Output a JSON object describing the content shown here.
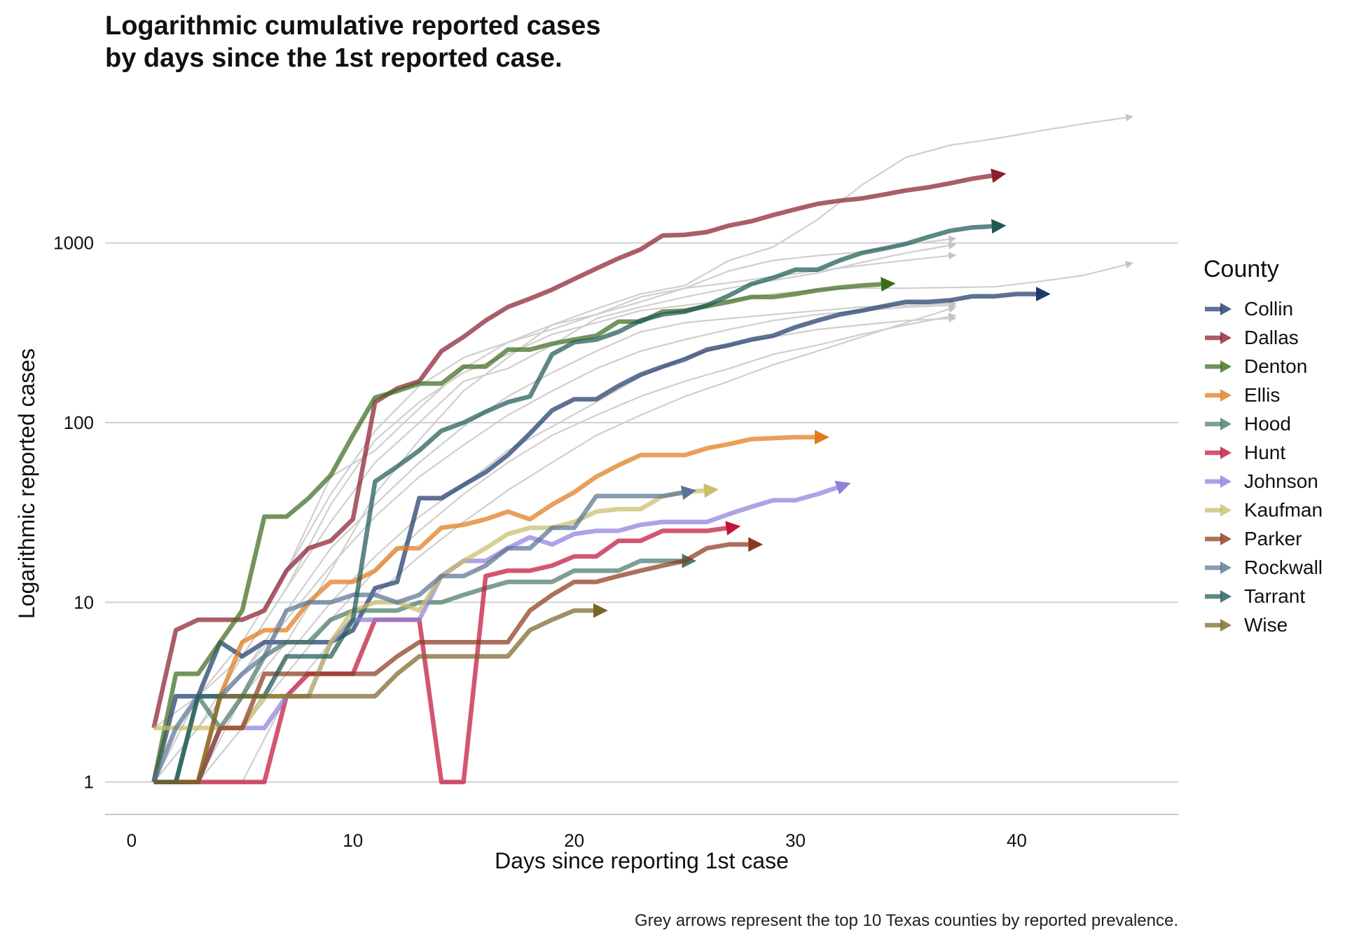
{
  "chart_data": {
    "type": "line",
    "title_lines": [
      "Logarithmic cumulative reported cases",
      "by days since the 1st reported case."
    ],
    "xlabel": "Days since reporting 1st case",
    "ylabel": "Logarithmic reported cases",
    "caption": "Grey arrows represent the top 10 Texas counties by reported prevalence.",
    "x_ticks": [
      0,
      10,
      20,
      30,
      40
    ],
    "y_ticks": [
      1,
      10,
      100,
      1000
    ],
    "y_tick_labels": [
      "1",
      "10",
      "100",
      "1000"
    ],
    "xlim": [
      -1.2,
      47.3
    ],
    "ylim": [
      0.66,
      7000
    ],
    "y_scale": "log",
    "grid": "horizontal major",
    "legend_title": "County",
    "legend_position": "right",
    "series": [
      {
        "name": "Collin",
        "color": "#1f3a6b",
        "x": [
          1,
          2,
          3,
          4,
          5,
          6,
          7,
          8,
          9,
          10,
          11,
          12,
          13,
          14,
          15,
          16,
          17,
          18,
          19,
          20,
          21,
          22,
          23,
          24,
          25,
          26,
          27,
          28,
          29,
          30,
          31,
          32,
          33,
          34,
          35,
          36,
          37,
          38,
          39,
          40,
          41
        ],
        "y": [
          1,
          3,
          3,
          6,
          5,
          6,
          6,
          6,
          6,
          7,
          12,
          13,
          38,
          38,
          45,
          53,
          66,
          87,
          117,
          135,
          135,
          160,
          185,
          205,
          225,
          255,
          270,
          290,
          305,
          340,
          370,
          400,
          420,
          445,
          470,
          470,
          480,
          505,
          505,
          520,
          520
        ]
      },
      {
        "name": "Dallas",
        "color": "#8b1e2f",
        "x": [
          1,
          2,
          3,
          4,
          5,
          6,
          7,
          8,
          9,
          10,
          11,
          12,
          13,
          14,
          15,
          16,
          17,
          18,
          19,
          20,
          21,
          22,
          23,
          24,
          25,
          26,
          27,
          28,
          29,
          30,
          31,
          32,
          33,
          34,
          35,
          36,
          37,
          38,
          39
        ],
        "y": [
          2,
          7,
          8,
          8,
          8,
          9,
          15,
          20,
          22,
          29,
          130,
          155,
          170,
          250,
          300,
          370,
          440,
          490,
          550,
          630,
          720,
          820,
          920,
          1100,
          1110,
          1150,
          1250,
          1320,
          1430,
          1540,
          1650,
          1720,
          1770,
          1860,
          1960,
          2040,
          2150,
          2280,
          2380
        ]
      },
      {
        "name": "Denton",
        "color": "#3d6b1e",
        "x": [
          1,
          2,
          3,
          4,
          5,
          6,
          7,
          8,
          9,
          10,
          11,
          12,
          13,
          14,
          15,
          16,
          17,
          18,
          19,
          20,
          21,
          22,
          23,
          24,
          25,
          26,
          27,
          28,
          29,
          30,
          31,
          32,
          33,
          34
        ],
        "y": [
          1,
          4,
          4,
          6,
          9,
          30,
          30,
          38,
          51,
          85,
          138,
          150,
          165,
          165,
          205,
          205,
          255,
          255,
          275,
          290,
          305,
          365,
          365,
          415,
          420,
          445,
          470,
          500,
          500,
          520,
          545,
          565,
          580,
          590
        ]
      },
      {
        "name": "Ellis",
        "color": "#e07a1a",
        "x": [
          1,
          2,
          3,
          4,
          5,
          6,
          7,
          8,
          9,
          10,
          11,
          12,
          13,
          14,
          15,
          16,
          17,
          18,
          19,
          20,
          21,
          22,
          23,
          24,
          25,
          26,
          27,
          28,
          29,
          30,
          31
        ],
        "y": [
          1,
          1,
          1,
          3,
          6,
          7,
          7,
          10,
          13,
          13,
          15,
          20,
          20,
          26,
          27,
          29,
          32,
          29,
          35,
          41,
          50,
          58,
          66,
          66,
          66,
          72,
          76,
          81,
          82,
          83,
          83
        ]
      },
      {
        "name": "Hood",
        "color": "#4a7a68",
        "x": [
          1,
          2,
          3,
          4,
          5,
          6,
          7,
          8,
          9,
          10,
          11,
          12,
          13,
          14,
          15,
          16,
          17,
          18,
          19,
          20,
          21,
          22,
          23,
          24,
          25
        ],
        "y": [
          1,
          1,
          3,
          2,
          3,
          5,
          6,
          6,
          8,
          9,
          9,
          9,
          10,
          10,
          11,
          12,
          13,
          13,
          13,
          15,
          15,
          15,
          17,
          17,
          17
        ]
      },
      {
        "name": "Hunt",
        "color": "#c0153c",
        "x": [
          1,
          2,
          3,
          4,
          5,
          6,
          7,
          8,
          9,
          10,
          11,
          12,
          13,
          14,
          15,
          16,
          17,
          18,
          19,
          20,
          21,
          22,
          23,
          24,
          25,
          26,
          27
        ],
        "y": [
          1,
          1,
          1,
          1,
          1,
          1,
          3,
          4,
          4,
          4,
          8,
          8,
          8,
          1,
          1,
          14,
          15,
          15,
          16,
          18,
          18,
          22,
          22,
          25,
          25,
          25,
          26
        ]
      },
      {
        "name": "Johnson",
        "color": "#8f7fdb",
        "x": [
          1,
          2,
          3,
          4,
          5,
          6,
          7,
          8,
          9,
          10,
          11,
          12,
          13,
          14,
          15,
          16,
          17,
          18,
          19,
          20,
          21,
          22,
          23,
          24,
          25,
          26,
          27,
          28,
          29,
          30,
          31,
          32
        ],
        "y": [
          1,
          1,
          1,
          2,
          2,
          2,
          3,
          3,
          6,
          8,
          8,
          8,
          8,
          14,
          17,
          17,
          20,
          23,
          21,
          24,
          25,
          25,
          27,
          28,
          28,
          28,
          31,
          34,
          37,
          37,
          40,
          44
        ]
      },
      {
        "name": "Kaufman",
        "color": "#c9bd6b",
        "x": [
          1,
          2,
          3,
          4,
          5,
          6,
          7,
          8,
          9,
          10,
          11,
          12,
          13,
          14,
          15,
          16,
          17,
          18,
          19,
          20,
          21,
          22,
          23,
          24,
          25,
          26
        ],
        "y": [
          2,
          2,
          2,
          2,
          2,
          3,
          3,
          3,
          6,
          9,
          10,
          10,
          9,
          14,
          17,
          20,
          24,
          26,
          26,
          28,
          32,
          33,
          33,
          39,
          41,
          42
        ]
      },
      {
        "name": "Parker",
        "color": "#8a3a1e",
        "x": [
          1,
          2,
          3,
          4,
          5,
          6,
          7,
          8,
          9,
          10,
          11,
          12,
          13,
          14,
          15,
          16,
          17,
          18,
          19,
          20,
          21,
          22,
          23,
          24,
          25,
          26,
          27,
          28
        ],
        "y": [
          1,
          1,
          1,
          2,
          2,
          4,
          4,
          4,
          4,
          4,
          4,
          5,
          6,
          6,
          6,
          6,
          6,
          9,
          11,
          13,
          13,
          14,
          15,
          16,
          17,
          20,
          21,
          21
        ]
      },
      {
        "name": "Rockwall",
        "color": "#5a7594",
        "x": [
          1,
          2,
          3,
          4,
          5,
          6,
          7,
          8,
          9,
          10,
          11,
          12,
          13,
          14,
          15,
          16,
          17,
          18,
          19,
          20,
          21,
          22,
          23,
          24,
          25
        ],
        "y": [
          1,
          2,
          3,
          3,
          4,
          5,
          9,
          10,
          10,
          11,
          11,
          10,
          11,
          14,
          14,
          16,
          20,
          20,
          26,
          26,
          39,
          39,
          39,
          39,
          41
        ]
      },
      {
        "name": "Tarrant",
        "color": "#1f5a54",
        "x": [
          1,
          2,
          3,
          4,
          5,
          6,
          7,
          8,
          9,
          10,
          11,
          12,
          13,
          14,
          15,
          16,
          17,
          18,
          19,
          20,
          21,
          22,
          23,
          24,
          25,
          26,
          27,
          28,
          29,
          30,
          31,
          32,
          33,
          34,
          35,
          36,
          37,
          38,
          39
        ],
        "y": [
          1,
          1,
          3,
          3,
          3,
          3,
          5,
          5,
          5,
          8,
          47,
          57,
          70,
          90,
          100,
          115,
          130,
          140,
          240,
          280,
          290,
          320,
          370,
          400,
          415,
          450,
          510,
          590,
          640,
          710,
          710,
          800,
          880,
          930,
          990,
          1080,
          1170,
          1220,
          1240
        ]
      },
      {
        "name": "Wise",
        "color": "#7a6628",
        "x": [
          1,
          2,
          3,
          4,
          5,
          6,
          7,
          8,
          9,
          10,
          11,
          12,
          13,
          14,
          15,
          16,
          17,
          18,
          19,
          20,
          21
        ],
        "y": [
          1,
          1,
          1,
          3,
          3,
          3,
          3,
          3,
          3,
          3,
          3,
          4,
          5,
          5,
          5,
          5,
          5,
          7,
          8,
          9,
          9
        ]
      }
    ],
    "background_series_note": "Grey arrows represent the top 10 Texas counties by reported prevalence.",
    "background_series": [
      {
        "x": [
          1,
          3,
          5,
          7,
          9,
          11,
          13,
          15,
          17,
          19,
          21,
          23,
          25,
          27,
          29,
          31,
          33,
          35,
          37,
          39,
          41,
          43,
          45
        ],
        "y": [
          1,
          3,
          6,
          15,
          50,
          70,
          120,
          200,
          280,
          350,
          430,
          520,
          580,
          800,
          950,
          1350,
          2100,
          3000,
          3500,
          3800,
          4200,
          4600,
          5000
        ]
      },
      {
        "x": [
          1,
          3,
          5,
          7,
          9,
          11,
          13,
          15,
          17,
          19,
          21,
          23,
          25,
          27,
          29,
          31,
          33,
          35,
          37
        ],
        "y": [
          2,
          3,
          6,
          15,
          40,
          90,
          160,
          230,
          280,
          330,
          400,
          470,
          560,
          700,
          800,
          850,
          890,
          980,
          1050
        ]
      },
      {
        "x": [
          1,
          3,
          5,
          7,
          9,
          11,
          13,
          15,
          17,
          19,
          21,
          23,
          25,
          27,
          29,
          31,
          33,
          35,
          37,
          39,
          41,
          43,
          45
        ],
        "y": [
          1,
          3,
          5,
          12,
          35,
          80,
          130,
          190,
          240,
          310,
          360,
          420,
          450,
          480,
          520,
          550,
          560,
          560,
          565,
          570,
          610,
          660,
          760
        ]
      },
      {
        "x": [
          1,
          3,
          5,
          7,
          9,
          11,
          13,
          15,
          17,
          19,
          21,
          23,
          25,
          27,
          29,
          31,
          33,
          35,
          37
        ],
        "y": [
          1,
          2,
          5,
          12,
          28,
          60,
          100,
          170,
          200,
          270,
          380,
          440,
          500,
          560,
          620,
          680,
          780,
          880,
          970
        ]
      },
      {
        "x": [
          1,
          3,
          5,
          7,
          9,
          11,
          13,
          15,
          17,
          19,
          21,
          23,
          25,
          27,
          29,
          31,
          33,
          35,
          37
        ],
        "y": [
          1,
          1,
          3,
          6,
          15,
          40,
          80,
          150,
          230,
          350,
          400,
          500,
          560,
          600,
          650,
          700,
          750,
          800,
          850
        ]
      },
      {
        "x": [
          1,
          3,
          5,
          7,
          9,
          11,
          13,
          15,
          17,
          19,
          21,
          23,
          25,
          27,
          29,
          31,
          33,
          35,
          37
        ],
        "y": [
          1,
          2,
          4,
          9,
          20,
          35,
          60,
          95,
          140,
          190,
          250,
          320,
          360,
          380,
          400,
          420,
          440,
          450,
          460
        ]
      },
      {
        "x": [
          1,
          3,
          5,
          7,
          9,
          11,
          13,
          15,
          17,
          19,
          21,
          23,
          25,
          27,
          29,
          31,
          33,
          35,
          37
        ],
        "y": [
          1,
          2,
          4,
          8,
          16,
          30,
          50,
          75,
          110,
          150,
          200,
          250,
          290,
          330,
          370,
          400,
          420,
          440,
          450
        ]
      },
      {
        "x": [
          1,
          3,
          5,
          7,
          9,
          11,
          13,
          15,
          17,
          19,
          21,
          23,
          25,
          27,
          29,
          31,
          33,
          35,
          37
        ],
        "y": [
          1,
          1,
          2,
          5,
          10,
          18,
          30,
          45,
          70,
          95,
          130,
          180,
          230,
          270,
          300,
          330,
          350,
          370,
          380
        ]
      },
      {
        "x": [
          1,
          3,
          5,
          7,
          9,
          11,
          13,
          15,
          17,
          19,
          21,
          23,
          25,
          27,
          29,
          31,
          33,
          35,
          37
        ],
        "y": [
          1,
          1,
          2,
          4,
          8,
          15,
          25,
          40,
          60,
          85,
          110,
          140,
          170,
          200,
          240,
          270,
          310,
          350,
          390
        ]
      },
      {
        "x": [
          1,
          3,
          5,
          7,
          9,
          11,
          13,
          15,
          17,
          19,
          21,
          23,
          25,
          27,
          29,
          31,
          33,
          35,
          37
        ],
        "y": [
          1,
          1,
          1,
          3,
          6,
          11,
          18,
          28,
          42,
          60,
          85,
          110,
          140,
          170,
          210,
          250,
          300,
          360,
          430
        ]
      }
    ]
  }
}
